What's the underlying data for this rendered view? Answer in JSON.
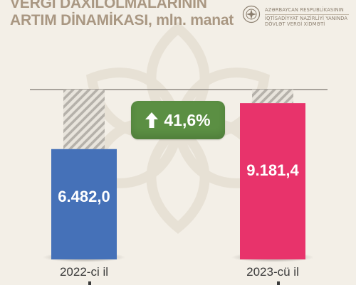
{
  "title": {
    "line1": "VERGİ DAXİLOLMALARININ",
    "line2": "ARTIM DİNAMİKASI,",
    "unit": "mln. manat"
  },
  "organization": {
    "line1": "AZƏRBAYCAN RESPUBLİKASININ",
    "line2": "İQTİSADİYYAT NAZİRLİYİ YANINDA",
    "line3": "DÖVLƏT VERGİ XİDMƏTİ",
    "logo_icon": "state-tax-service-emblem-icon"
  },
  "change_badge": {
    "text": "41,6%",
    "icon": "arrow-up-icon",
    "color": "#5b8f43"
  },
  "colors": {
    "bar_2022": "#4571b8",
    "bar_2023": "#e8336b",
    "background": "#f3efe7",
    "title": "#a99782"
  },
  "chart_data": {
    "type": "bar",
    "categories": [
      "2022-ci il",
      "2023-cü il"
    ],
    "values": [
      6482.0,
      9181.4
    ],
    "value_labels": [
      "6.482,0",
      "9.181,4"
    ],
    "title": "VERGİ DAXİLOLMALARININ ARTIM DİNAMİKASI, mln. manat",
    "xlabel": "",
    "ylabel": "",
    "ylim": [
      0,
      10000
    ],
    "grid": false
  }
}
